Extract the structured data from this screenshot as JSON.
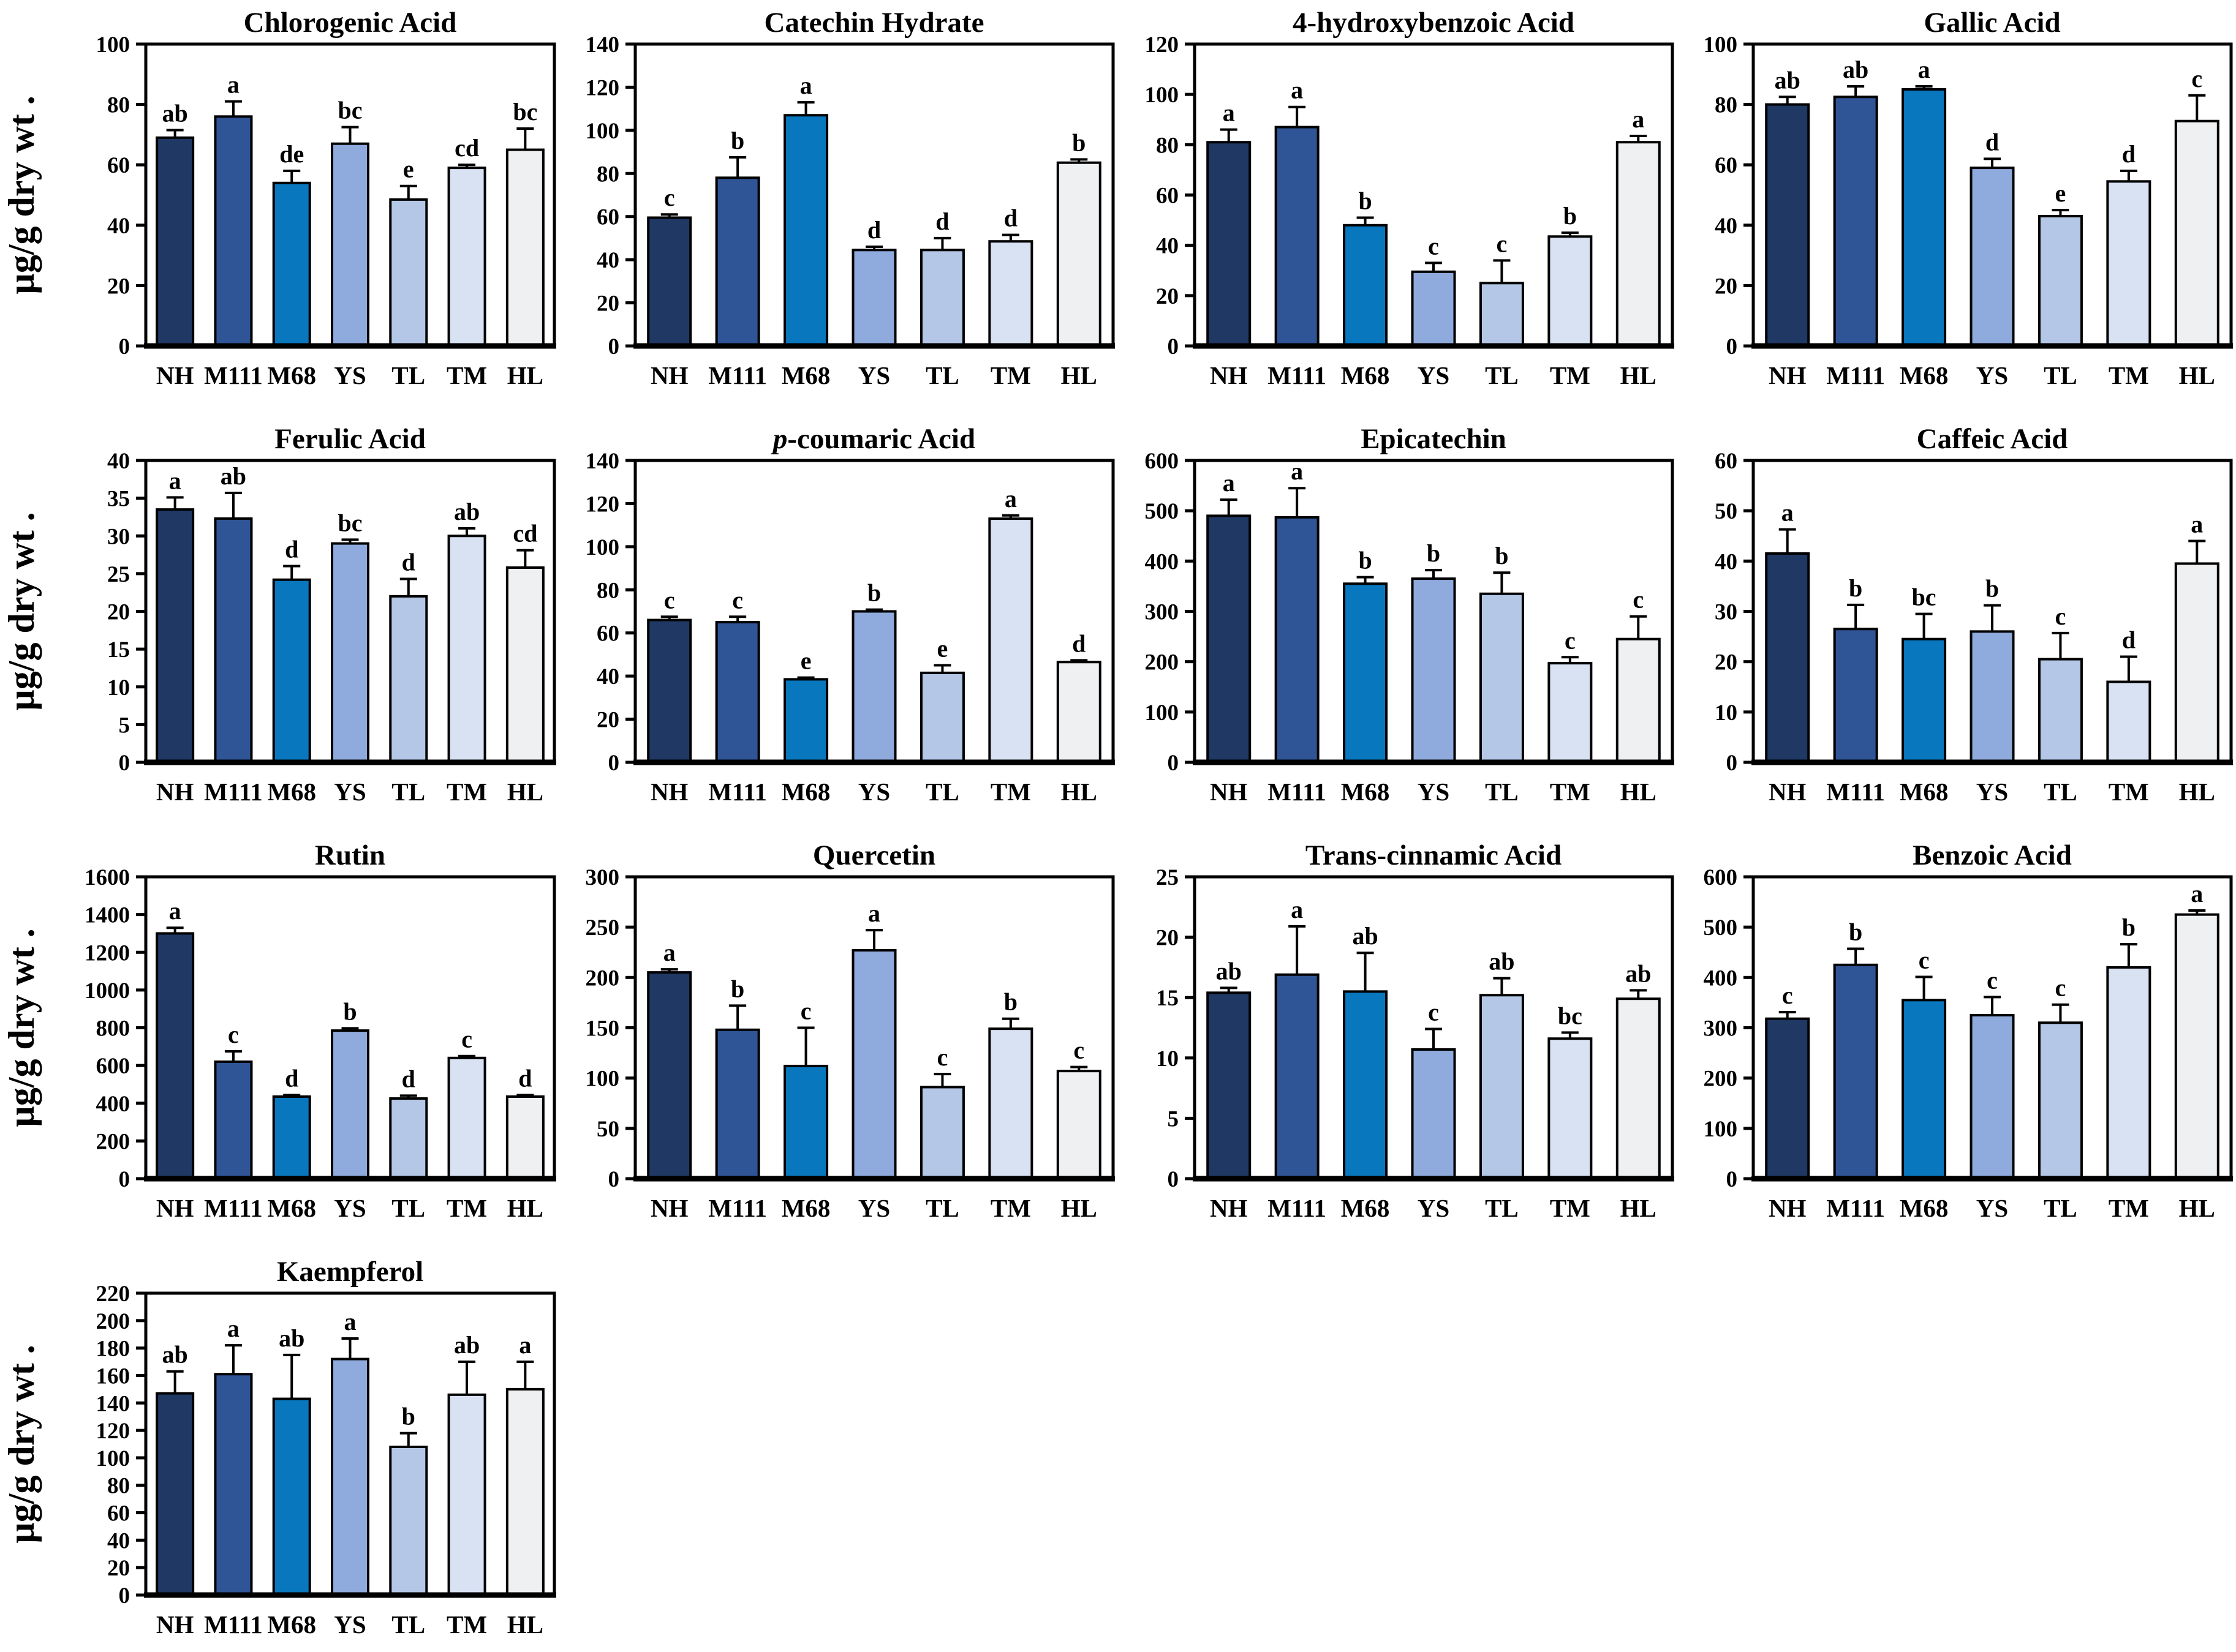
{
  "figure": {
    "background": "#ffffff",
    "axis_color": "#000000",
    "text_color": "#000000",
    "y_axis_unit_label": "µg/g dry wt ."
  },
  "samples": [
    "NH",
    "M111",
    "M68",
    "YS",
    "TL",
    "TM",
    "HL"
  ],
  "bar_colors": [
    "#1F3864",
    "#2F5597",
    "#0877BE",
    "#8FAADC",
    "#B4C7E7",
    "#D9E2F3",
    "#EFF0F2"
  ],
  "chart_data": [
    {
      "type": "bar",
      "title": "Chlorogenic Acid",
      "title_lead_italic": "",
      "ylabel": "µg/g dry wt .",
      "has_ylabel": true,
      "row": 0,
      "col": 0,
      "ylim": [
        0,
        100
      ],
      "ytick_step": 20,
      "grid": false,
      "legend": "none",
      "categories": [
        "NH",
        "M111",
        "M68",
        "YS",
        "TL",
        "TM",
        "HL"
      ],
      "values": [
        69,
        76,
        54,
        67,
        48.5,
        59,
        65
      ],
      "errors": [
        2.5,
        5,
        4,
        5.5,
        4.5,
        1,
        7
      ],
      "letters": [
        "ab",
        "a",
        "de",
        "bc",
        "e",
        "cd",
        "bc"
      ]
    },
    {
      "type": "bar",
      "title": "Catechin Hydrate",
      "title_lead_italic": "",
      "ylabel": "",
      "has_ylabel": false,
      "row": 0,
      "col": 1,
      "ylim": [
        0,
        140
      ],
      "ytick_step": 20,
      "grid": false,
      "legend": "none",
      "categories": [
        "NH",
        "M111",
        "M68",
        "YS",
        "TL",
        "TM",
        "HL"
      ],
      "values": [
        59.5,
        78,
        107,
        44.5,
        44.5,
        48.5,
        85
      ],
      "errors": [
        1.5,
        9.5,
        6,
        1.5,
        5.5,
        3,
        1.5
      ],
      "letters": [
        "c",
        "b",
        "a",
        "d",
        "d",
        "d",
        "b"
      ]
    },
    {
      "type": "bar",
      "title": "4-hydroxybenzoic Acid",
      "title_lead_italic": "",
      "ylabel": "",
      "has_ylabel": false,
      "row": 0,
      "col": 2,
      "ylim": [
        0,
        120
      ],
      "ytick_step": 20,
      "grid": false,
      "legend": "none",
      "categories": [
        "NH",
        "M111",
        "M68",
        "YS",
        "TL",
        "TM",
        "HL"
      ],
      "values": [
        81,
        87,
        48,
        29.5,
        25,
        43.5,
        81
      ],
      "errors": [
        5,
        8,
        3,
        3.5,
        9,
        1.5,
        2.5
      ],
      "letters": [
        "a",
        "a",
        "b",
        "c",
        "c",
        "b",
        "a"
      ]
    },
    {
      "type": "bar",
      "title": "Gallic Acid",
      "title_lead_italic": "",
      "ylabel": "",
      "has_ylabel": false,
      "row": 0,
      "col": 3,
      "ylim": [
        0,
        100
      ],
      "ytick_step": 20,
      "grid": false,
      "legend": "none",
      "categories": [
        "NH",
        "M111",
        "M68",
        "YS",
        "TL",
        "TM",
        "HL"
      ],
      "values": [
        80,
        82.5,
        85,
        59,
        43,
        54.5,
        74.5
      ],
      "errors": [
        2.5,
        3.5,
        1,
        3,
        2,
        3.5,
        8.5
      ],
      "letters": [
        "ab",
        "ab",
        "a",
        "d",
        "e",
        "d",
        "c"
      ]
    },
    {
      "type": "bar",
      "title": "Ferulic Acid",
      "title_lead_italic": "",
      "ylabel": "µg/g dry wt .",
      "has_ylabel": true,
      "row": 1,
      "col": 0,
      "ylim": [
        0,
        40
      ],
      "ytick_step": 5,
      "grid": false,
      "legend": "none",
      "categories": [
        "NH",
        "M111",
        "M68",
        "YS",
        "TL",
        "TM",
        "HL"
      ],
      "values": [
        33.5,
        32.3,
        24.2,
        29,
        22,
        30,
        25.8
      ],
      "errors": [
        1.6,
        3.4,
        1.8,
        0.5,
        2.3,
        1,
        2.3
      ],
      "letters": [
        "a",
        "ab",
        "d",
        "bc",
        "d",
        "ab",
        "cd"
      ]
    },
    {
      "type": "bar",
      "title": "-coumaric Acid",
      "title_lead_italic": "p",
      "ylabel": "",
      "has_ylabel": false,
      "row": 1,
      "col": 1,
      "ylim": [
        0,
        140
      ],
      "ytick_step": 20,
      "grid": false,
      "legend": "none",
      "categories": [
        "NH",
        "M111",
        "M68",
        "YS",
        "TL",
        "TM",
        "HL"
      ],
      "values": [
        66,
        65,
        38.5,
        70,
        41.5,
        113,
        46.5
      ],
      "errors": [
        1.5,
        2.5,
        0.8,
        0.8,
        3.5,
        1.5,
        0.8
      ],
      "letters": [
        "c",
        "c",
        "e",
        "b",
        "e",
        "a",
        "d"
      ]
    },
    {
      "type": "bar",
      "title": "Epicatechin",
      "title_lead_italic": "",
      "ylabel": "",
      "has_ylabel": false,
      "row": 1,
      "col": 2,
      "ylim": [
        0,
        600
      ],
      "ytick_step": 100,
      "grid": false,
      "legend": "none",
      "categories": [
        "NH",
        "M111",
        "M68",
        "YS",
        "TL",
        "TM",
        "HL"
      ],
      "values": [
        490,
        487,
        355,
        365,
        335,
        197,
        245
      ],
      "errors": [
        32,
        58,
        13,
        17,
        42,
        12,
        45
      ],
      "letters": [
        "a",
        "a",
        "b",
        "b",
        "b",
        "c",
        "c"
      ]
    },
    {
      "type": "bar",
      "title": "Caffeic Acid",
      "title_lead_italic": "",
      "ylabel": "",
      "has_ylabel": false,
      "row": 1,
      "col": 3,
      "ylim": [
        0,
        60
      ],
      "ytick_step": 10,
      "grid": false,
      "legend": "none",
      "categories": [
        "NH",
        "M111",
        "M68",
        "YS",
        "TL",
        "TM",
        "HL"
      ],
      "values": [
        41.5,
        26.5,
        24.5,
        26,
        20.5,
        16,
        39.5
      ],
      "errors": [
        4.8,
        4.8,
        5,
        5.2,
        5.2,
        5,
        4.5
      ],
      "letters": [
        "a",
        "b",
        "bc",
        "b",
        "c",
        "d",
        "a"
      ]
    },
    {
      "type": "bar",
      "title": "Rutin",
      "title_lead_italic": "",
      "ylabel": "µg/g dry wt .",
      "has_ylabel": true,
      "row": 2,
      "col": 0,
      "ylim": [
        0,
        1600
      ],
      "ytick_step": 200,
      "grid": false,
      "legend": "none",
      "categories": [
        "NH",
        "M111",
        "M68",
        "YS",
        "TL",
        "TM",
        "HL"
      ],
      "values": [
        1300,
        620,
        435,
        785,
        425,
        640,
        435
      ],
      "errors": [
        30,
        55,
        8,
        12,
        15,
        10,
        8
      ],
      "letters": [
        "a",
        "c",
        "d",
        "b",
        "d",
        "c",
        "d"
      ]
    },
    {
      "type": "bar",
      "title": "Quercetin",
      "title_lead_italic": "",
      "ylabel": "",
      "has_ylabel": false,
      "row": 2,
      "col": 1,
      "ylim": [
        0,
        300
      ],
      "ytick_step": 50,
      "grid": false,
      "legend": "none",
      "categories": [
        "NH",
        "M111",
        "M68",
        "YS",
        "TL",
        "TM",
        "HL"
      ],
      "values": [
        205,
        148,
        112,
        227,
        91,
        149,
        107
      ],
      "errors": [
        3,
        24,
        38,
        20,
        13,
        10,
        4
      ],
      "letters": [
        "a",
        "b",
        "c",
        "a",
        "c",
        "b",
        "c"
      ]
    },
    {
      "type": "bar",
      "title": "Trans-cinnamic Acid",
      "title_lead_italic": "",
      "ylabel": "",
      "has_ylabel": false,
      "row": 2,
      "col": 2,
      "ylim": [
        0,
        25
      ],
      "ytick_step": 5,
      "grid": false,
      "legend": "none",
      "categories": [
        "NH",
        "M111",
        "M68",
        "YS",
        "TL",
        "TM",
        "HL"
      ],
      "values": [
        15.4,
        16.9,
        15.5,
        10.7,
        15.2,
        11.6,
        14.9
      ],
      "errors": [
        0.4,
        4,
        3.2,
        1.7,
        1.4,
        0.5,
        0.7
      ],
      "letters": [
        "ab",
        "a",
        "ab",
        "c",
        "ab",
        "bc",
        "ab"
      ]
    },
    {
      "type": "bar",
      "title": "Benzoic Acid",
      "title_lead_italic": "",
      "ylabel": "",
      "has_ylabel": false,
      "row": 2,
      "col": 3,
      "ylim": [
        0,
        600
      ],
      "ytick_step": 100,
      "grid": false,
      "legend": "none",
      "categories": [
        "NH",
        "M111",
        "M68",
        "YS",
        "TL",
        "TM",
        "HL"
      ],
      "values": [
        318,
        425,
        355,
        325,
        310,
        420,
        525
      ],
      "errors": [
        13,
        32,
        46,
        36,
        36,
        46,
        8
      ],
      "letters": [
        "c",
        "b",
        "c",
        "c",
        "c",
        "b",
        "a"
      ]
    },
    {
      "type": "bar",
      "title": "Kaempferol",
      "title_lead_italic": "",
      "ylabel": "µg/g dry wt .",
      "has_ylabel": true,
      "row": 3,
      "col": 0,
      "ylim": [
        0,
        220
      ],
      "ytick_step": 20,
      "grid": false,
      "legend": "none",
      "categories": [
        "NH",
        "M111",
        "M68",
        "YS",
        "TL",
        "TM",
        "HL"
      ],
      "values": [
        147,
        161,
        143,
        172,
        108,
        146,
        150
      ],
      "errors": [
        16,
        21,
        32,
        15,
        10,
        24,
        20
      ],
      "letters": [
        "ab",
        "a",
        "ab",
        "a",
        "b",
        "ab",
        "a"
      ]
    }
  ]
}
